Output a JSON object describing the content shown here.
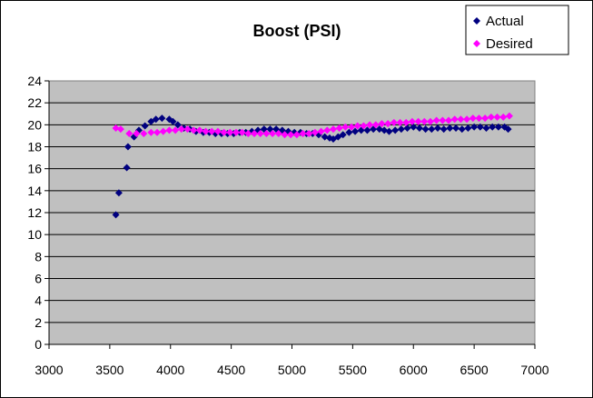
{
  "chart_data": {
    "type": "scatter",
    "title": "Boost (PSI)",
    "xlabel": "",
    "ylabel": "",
    "xlim": [
      3000,
      7000
    ],
    "ylim": [
      0,
      24
    ],
    "x_ticks": [
      3000,
      3500,
      4000,
      4500,
      5000,
      5500,
      6000,
      6500,
      7000
    ],
    "y_ticks": [
      0,
      2,
      4,
      6,
      8,
      10,
      12,
      14,
      16,
      18,
      20,
      22,
      24
    ],
    "grid": "horizontal",
    "plot_background": "#c0c0c0",
    "legend_position": "top-right",
    "series": [
      {
        "name": "Actual",
        "color": "#000080",
        "marker": "diamond",
        "points": [
          [
            3550,
            11.8
          ],
          [
            3575,
            13.8
          ],
          [
            3640,
            16.1
          ],
          [
            3650,
            18.0
          ],
          [
            3700,
            18.9
          ],
          [
            3740,
            19.5
          ],
          [
            3790,
            19.9
          ],
          [
            3840,
            20.3
          ],
          [
            3880,
            20.5
          ],
          [
            3930,
            20.6
          ],
          [
            3990,
            20.5
          ],
          [
            4020,
            20.3
          ],
          [
            4060,
            20.0
          ],
          [
            4110,
            19.7
          ],
          [
            4160,
            19.6
          ],
          [
            4210,
            19.4
          ],
          [
            4270,
            19.3
          ],
          [
            4320,
            19.3
          ],
          [
            4370,
            19.2
          ],
          [
            4420,
            19.2
          ],
          [
            4470,
            19.2
          ],
          [
            4520,
            19.2
          ],
          [
            4570,
            19.3
          ],
          [
            4620,
            19.3
          ],
          [
            4670,
            19.4
          ],
          [
            4720,
            19.5
          ],
          [
            4770,
            19.6
          ],
          [
            4820,
            19.6
          ],
          [
            4870,
            19.6
          ],
          [
            4920,
            19.5
          ],
          [
            4970,
            19.4
          ],
          [
            5020,
            19.3
          ],
          [
            5070,
            19.3
          ],
          [
            5120,
            19.2
          ],
          [
            5170,
            19.2
          ],
          [
            5220,
            19.1
          ],
          [
            5270,
            18.9
          ],
          [
            5310,
            18.8
          ],
          [
            5340,
            18.7
          ],
          [
            5380,
            18.9
          ],
          [
            5420,
            19.1
          ],
          [
            5470,
            19.3
          ],
          [
            5520,
            19.4
          ],
          [
            5570,
            19.5
          ],
          [
            5620,
            19.5
          ],
          [
            5670,
            19.6
          ],
          [
            5720,
            19.6
          ],
          [
            5760,
            19.5
          ],
          [
            5800,
            19.4
          ],
          [
            5850,
            19.5
          ],
          [
            5900,
            19.6
          ],
          [
            5950,
            19.7
          ],
          [
            6000,
            19.8
          ],
          [
            6050,
            19.7
          ],
          [
            6100,
            19.6
          ],
          [
            6150,
            19.6
          ],
          [
            6200,
            19.7
          ],
          [
            6250,
            19.6
          ],
          [
            6300,
            19.7
          ],
          [
            6350,
            19.7
          ],
          [
            6400,
            19.6
          ],
          [
            6450,
            19.7
          ],
          [
            6500,
            19.8
          ],
          [
            6550,
            19.8
          ],
          [
            6600,
            19.7
          ],
          [
            6650,
            19.8
          ],
          [
            6700,
            19.8
          ],
          [
            6750,
            19.8
          ],
          [
            6780,
            19.6
          ]
        ]
      },
      {
        "name": "Desired",
        "color": "#ff00ff",
        "marker": "diamond",
        "points": [
          [
            3550,
            19.7
          ],
          [
            3590,
            19.6
          ],
          [
            3660,
            19.2
          ],
          [
            3720,
            19.2
          ],
          [
            3780,
            19.2
          ],
          [
            3840,
            19.3
          ],
          [
            3890,
            19.3
          ],
          [
            3940,
            19.4
          ],
          [
            3990,
            19.5
          ],
          [
            4040,
            19.5
          ],
          [
            4090,
            19.6
          ],
          [
            4140,
            19.6
          ],
          [
            4190,
            19.5
          ],
          [
            4240,
            19.5
          ],
          [
            4290,
            19.4
          ],
          [
            4340,
            19.4
          ],
          [
            4390,
            19.4
          ],
          [
            4440,
            19.3
          ],
          [
            4490,
            19.3
          ],
          [
            4540,
            19.3
          ],
          [
            4590,
            19.3
          ],
          [
            4640,
            19.2
          ],
          [
            4690,
            19.2
          ],
          [
            4740,
            19.2
          ],
          [
            4790,
            19.2
          ],
          [
            4840,
            19.2
          ],
          [
            4890,
            19.2
          ],
          [
            4940,
            19.1
          ],
          [
            4990,
            19.1
          ],
          [
            5040,
            19.1
          ],
          [
            5090,
            19.2
          ],
          [
            5140,
            19.2
          ],
          [
            5190,
            19.3
          ],
          [
            5240,
            19.4
          ],
          [
            5290,
            19.5
          ],
          [
            5340,
            19.6
          ],
          [
            5390,
            19.7
          ],
          [
            5440,
            19.8
          ],
          [
            5490,
            19.8
          ],
          [
            5540,
            19.9
          ],
          [
            5590,
            19.9
          ],
          [
            5640,
            20.0
          ],
          [
            5690,
            20.0
          ],
          [
            5740,
            20.1
          ],
          [
            5790,
            20.1
          ],
          [
            5840,
            20.2
          ],
          [
            5890,
            20.2
          ],
          [
            5940,
            20.2
          ],
          [
            5990,
            20.3
          ],
          [
            6040,
            20.3
          ],
          [
            6090,
            20.3
          ],
          [
            6140,
            20.3
          ],
          [
            6190,
            20.4
          ],
          [
            6240,
            20.4
          ],
          [
            6290,
            20.4
          ],
          [
            6340,
            20.5
          ],
          [
            6390,
            20.5
          ],
          [
            6440,
            20.5
          ],
          [
            6490,
            20.6
          ],
          [
            6540,
            20.6
          ],
          [
            6590,
            20.6
          ],
          [
            6640,
            20.7
          ],
          [
            6690,
            20.7
          ],
          [
            6740,
            20.7
          ],
          [
            6790,
            20.8
          ]
        ]
      }
    ]
  }
}
